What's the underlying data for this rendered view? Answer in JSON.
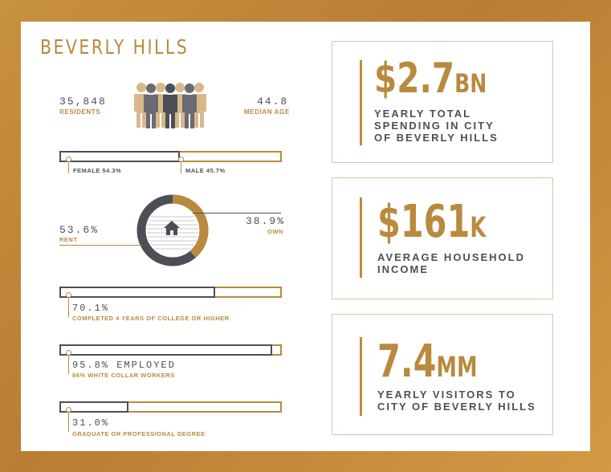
{
  "title": "BEVERLY HILLS",
  "residents": {
    "value": "35,848",
    "label": "RESIDENTS"
  },
  "median_age": {
    "value": "44.8",
    "label": "MEDIAN AGE"
  },
  "gender": {
    "female_label": "FEMALE 54.3%",
    "male_label": "MALE 45.7%",
    "female_fraction": 0.543
  },
  "housing": {
    "rent_value": "53.6%",
    "rent_label": "RENT",
    "own_value": "38.9%",
    "own_label": "OWN"
  },
  "college": {
    "value": "70.1%",
    "label": "COMPLETED 4 YEARS OF COLLEGE OR HIGHER",
    "fraction": 0.701
  },
  "employment": {
    "value": "95.8% EMPLOYED",
    "label": "86% WHITE COLLAR WORKERS",
    "fraction": 0.958
  },
  "degree": {
    "value": "31.0%",
    "label": "GRADUATE OR PROFESSIONAL DEGREE",
    "fraction": 0.31
  },
  "stats": [
    {
      "number": "$2.7",
      "suffix": "BN",
      "desc_lines": [
        "YEARLY TOTAL",
        "SPENDING IN CITY",
        "OF BEVERLY HILLS"
      ]
    },
    {
      "number": "$161",
      "suffix": "K",
      "desc_lines": [
        "AVERAGE HOUSEHOLD",
        "INCOME"
      ]
    },
    {
      "number": "7.4",
      "suffix": "MM",
      "desc_lines": [
        "YEARLY VISITORS TO",
        "CITY OF BEVERLY HILLS"
      ]
    }
  ],
  "colors": {
    "gold": "#b98a3e",
    "charcoal": "#4d4f56",
    "tan": "#d8b88a"
  },
  "icons": {
    "people": "people-group-icon",
    "house": "house-icon"
  }
}
